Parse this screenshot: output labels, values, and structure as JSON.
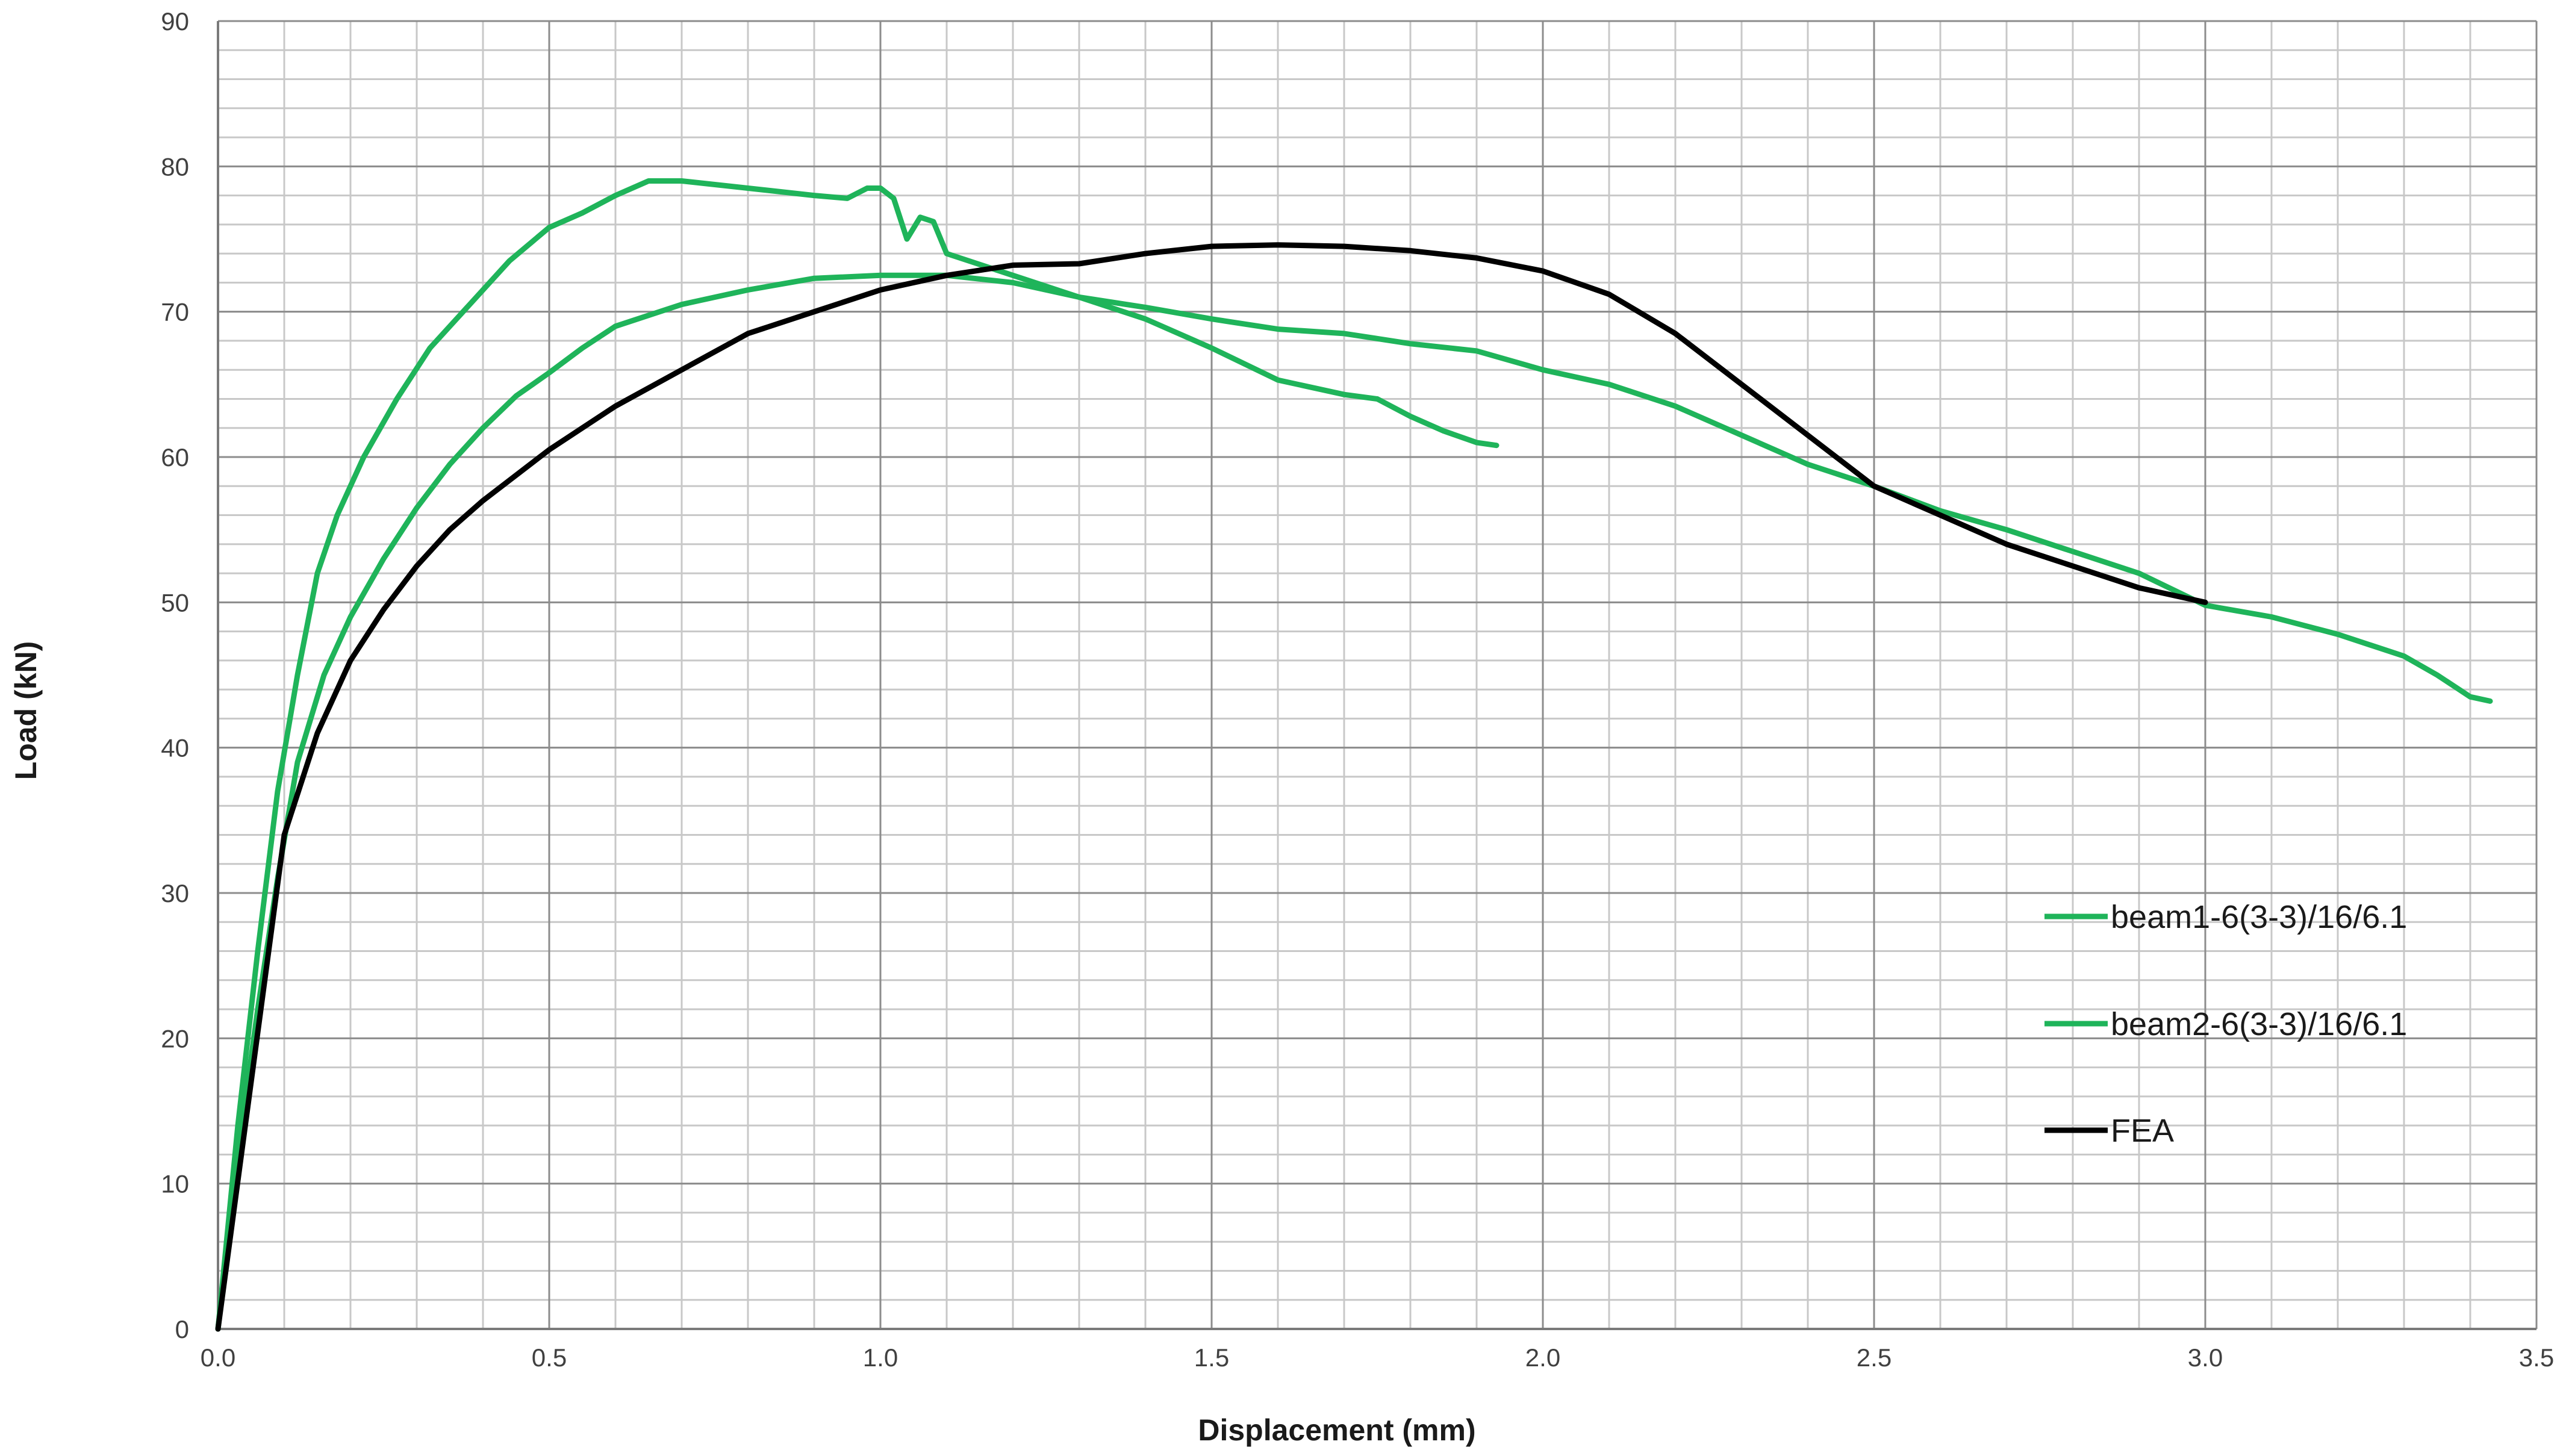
{
  "chart_data": {
    "type": "line",
    "xlabel": "Displacement (mm)",
    "ylabel": "Load (kN)",
    "xlim": [
      0,
      3.5
    ],
    "ylim": [
      0,
      90
    ],
    "x_ticks": [
      "0.0",
      "0.5",
      "1.0",
      "1.5",
      "2.0",
      "2.5",
      "3.0",
      "3.5"
    ],
    "x_tick_values": [
      0,
      0.5,
      1.0,
      1.5,
      2.0,
      2.5,
      3.0,
      3.5
    ],
    "y_ticks": [
      "0",
      "10",
      "20",
      "30",
      "40",
      "50",
      "60",
      "70",
      "80",
      "90"
    ],
    "y_tick_values": [
      0,
      10,
      20,
      30,
      40,
      50,
      60,
      70,
      80,
      90
    ],
    "grid": true,
    "legend_position": "right",
    "series": [
      {
        "name": "beam1-6(3-3)/16/6.1",
        "color": "#1fb45a",
        "points": [
          [
            0,
            0
          ],
          [
            0.03,
            14
          ],
          [
            0.06,
            26
          ],
          [
            0.09,
            37
          ],
          [
            0.12,
            45
          ],
          [
            0.15,
            52
          ],
          [
            0.18,
            56
          ],
          [
            0.22,
            60
          ],
          [
            0.27,
            64
          ],
          [
            0.32,
            67.5
          ],
          [
            0.38,
            70.5
          ],
          [
            0.44,
            73.5
          ],
          [
            0.5,
            75.8
          ],
          [
            0.55,
            76.8
          ],
          [
            0.6,
            78
          ],
          [
            0.65,
            79
          ],
          [
            0.7,
            79
          ],
          [
            0.8,
            78.5
          ],
          [
            0.9,
            78
          ],
          [
            0.95,
            77.8
          ],
          [
            0.98,
            78.5
          ],
          [
            1.0,
            78.5
          ],
          [
            1.02,
            77.8
          ],
          [
            1.04,
            75
          ],
          [
            1.06,
            76.5
          ],
          [
            1.08,
            76.2
          ],
          [
            1.1,
            74
          ],
          [
            1.2,
            72.5
          ],
          [
            1.3,
            71
          ],
          [
            1.4,
            69.5
          ],
          [
            1.5,
            67.5
          ],
          [
            1.6,
            65.3
          ],
          [
            1.7,
            64.3
          ],
          [
            1.75,
            64
          ],
          [
            1.8,
            62.8
          ],
          [
            1.85,
            61.8
          ],
          [
            1.9,
            61
          ],
          [
            1.93,
            60.8
          ]
        ]
      },
      {
        "name": "beam2-6(3-3)/16/6.1",
        "color": "#1fb45a",
        "points": [
          [
            0,
            0
          ],
          [
            0.03,
            12
          ],
          [
            0.06,
            22
          ],
          [
            0.09,
            31
          ],
          [
            0.12,
            39
          ],
          [
            0.16,
            45
          ],
          [
            0.2,
            49
          ],
          [
            0.25,
            53
          ],
          [
            0.3,
            56.5
          ],
          [
            0.35,
            59.5
          ],
          [
            0.4,
            62
          ],
          [
            0.45,
            64.2
          ],
          [
            0.5,
            65.8
          ],
          [
            0.55,
            67.5
          ],
          [
            0.6,
            69
          ],
          [
            0.7,
            70.5
          ],
          [
            0.8,
            71.5
          ],
          [
            0.9,
            72.3
          ],
          [
            1.0,
            72.5
          ],
          [
            1.1,
            72.5
          ],
          [
            1.2,
            72
          ],
          [
            1.3,
            71
          ],
          [
            1.4,
            70.3
          ],
          [
            1.5,
            69.5
          ],
          [
            1.6,
            68.8
          ],
          [
            1.7,
            68.5
          ],
          [
            1.8,
            67.8
          ],
          [
            1.9,
            67.3
          ],
          [
            2.0,
            66
          ],
          [
            2.1,
            65
          ],
          [
            2.2,
            63.5
          ],
          [
            2.3,
            61.5
          ],
          [
            2.4,
            59.5
          ],
          [
            2.5,
            58
          ],
          [
            2.6,
            56.3
          ],
          [
            2.7,
            55
          ],
          [
            2.8,
            53.5
          ],
          [
            2.9,
            52
          ],
          [
            3.0,
            49.8
          ],
          [
            3.1,
            49
          ],
          [
            3.2,
            47.8
          ],
          [
            3.3,
            46.3
          ],
          [
            3.35,
            45
          ],
          [
            3.4,
            43.5
          ],
          [
            3.43,
            43.2
          ]
        ]
      },
      {
        "name": "FEA",
        "color": "#000000",
        "points": [
          [
            0,
            0
          ],
          [
            0.05,
            17
          ],
          [
            0.1,
            34
          ],
          [
            0.15,
            41
          ],
          [
            0.2,
            46
          ],
          [
            0.25,
            49.5
          ],
          [
            0.3,
            52.5
          ],
          [
            0.35,
            55
          ],
          [
            0.4,
            57
          ],
          [
            0.5,
            60.5
          ],
          [
            0.6,
            63.5
          ],
          [
            0.7,
            66
          ],
          [
            0.8,
            68.5
          ],
          [
            0.9,
            70
          ],
          [
            1.0,
            71.5
          ],
          [
            1.1,
            72.5
          ],
          [
            1.2,
            73.2
          ],
          [
            1.3,
            73.3
          ],
          [
            1.4,
            74
          ],
          [
            1.5,
            74.5
          ],
          [
            1.6,
            74.6
          ],
          [
            1.7,
            74.5
          ],
          [
            1.8,
            74.2
          ],
          [
            1.9,
            73.7
          ],
          [
            2.0,
            72.8
          ],
          [
            2.1,
            71.2
          ],
          [
            2.2,
            68.5
          ],
          [
            2.3,
            65
          ],
          [
            2.4,
            61.5
          ],
          [
            2.5,
            58
          ],
          [
            2.6,
            56
          ],
          [
            2.7,
            54
          ],
          [
            2.8,
            52.5
          ],
          [
            2.9,
            51
          ],
          [
            3.0,
            50
          ]
        ]
      }
    ]
  }
}
